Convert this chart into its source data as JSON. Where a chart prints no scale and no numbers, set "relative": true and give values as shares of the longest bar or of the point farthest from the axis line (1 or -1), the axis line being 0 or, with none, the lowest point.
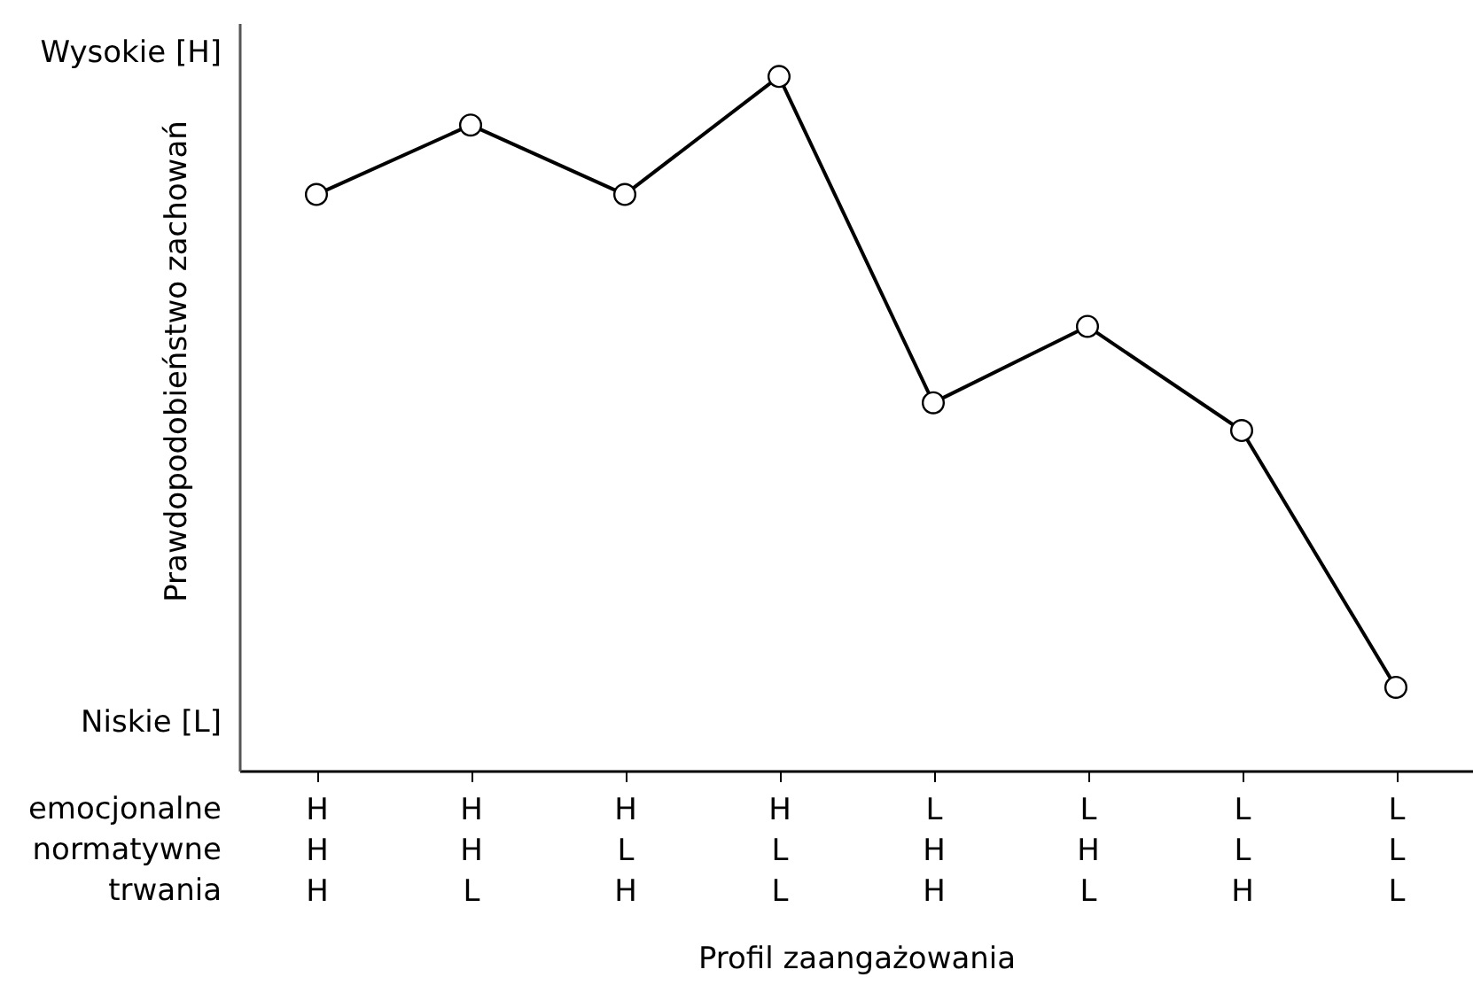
{
  "chart_data": {
    "type": "line",
    "relative": true,
    "xlabel": "Profil zaangażowania",
    "ylabel": "Prawdopodobieństwo zachowań",
    "categories": [
      "H\nH\nH",
      "H\nH\nL",
      "H\nL\nH",
      "H\nL\nL",
      "L\nH\nH",
      "L\nH\nL",
      "L\nL\nH",
      "L\nL\nL"
    ],
    "series": [
      {
        "color": "#000000",
        "values": [
          0.83,
          0.93,
          0.83,
          1,
          0.53,
          0.64,
          0.49,
          0.12
        ]
      }
    ],
    "annotations": [
      "Wysokie [H]",
      "Niskie [L]",
      "emocjonalne",
      "normatywne",
      "trwania"
    ],
    "marker": "circle",
    "line_style": "solid",
    "grid": false
  }
}
